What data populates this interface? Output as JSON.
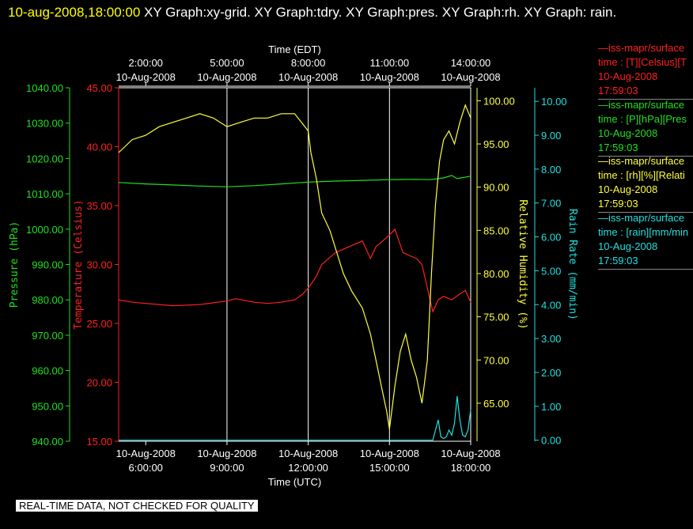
{
  "header": {
    "timestamp": "10-aug-2008,18:00:00",
    "titles": " XY Graph:xy-grid.  XY Graph:tdry.  XY Graph:pres.  XY Graph:rh.  XY Graph: rain."
  },
  "legend": [
    {
      "name": "—iss-mapr/surface",
      "line2": "time : [T][Celsius][T",
      "date": "10-Aug-2008",
      "time": "17:59:03",
      "color": "#ff2020"
    },
    {
      "name": "—iss-mapr/surface",
      "line2": "time : [P][hPa][Pres",
      "date": "10-Aug-2008",
      "time": "17:59:03",
      "color": "#20e020"
    },
    {
      "name": "—iss-mapr/surface",
      "line2": "time : [rh][%][Relati",
      "date": "10-Aug-2008",
      "time": "17:59:03",
      "color": "#ffff40"
    },
    {
      "name": "—iss-mapr/surface",
      "line2": "time : [rain][mm/min",
      "date": "10-Aug-2008",
      "time": "17:59:03",
      "color": "#20e0e0"
    }
  ],
  "disclaimer": "REAL-TIME DATA, NOT CHECKED FOR QUALITY",
  "chart_data": {
    "type": "line",
    "x_unit": "hours UTC",
    "xlim": [
      5.0,
      18.0
    ],
    "top_axis": {
      "label": "Time (EDT)",
      "ticks": [
        {
          "x": 6,
          "time": "2:00:00",
          "date": "10-Aug-2008"
        },
        {
          "x": 9,
          "time": "5:00:00",
          "date": "10-Aug-2008"
        },
        {
          "x": 12,
          "time": "8:00:00",
          "date": "10-Aug-2008"
        },
        {
          "x": 15,
          "time": "11:00:00",
          "date": "10-Aug-2008"
        },
        {
          "x": 18,
          "time": "14:00:00",
          "date": "10-Aug-2008"
        }
      ]
    },
    "bottom_axis": {
      "label": "Time (UTC)",
      "ticks": [
        {
          "x": 6,
          "date": "10-Aug-2008",
          "time": "6:00:00"
        },
        {
          "x": 9,
          "date": "10-Aug-2008",
          "time": "9:00:00"
        },
        {
          "x": 12,
          "date": "10-Aug-2008",
          "time": "12:00:00"
        },
        {
          "x": 15,
          "date": "10-Aug-2008",
          "time": "15:00:00"
        },
        {
          "x": 18,
          "date": "10-Aug-2008",
          "time": "18:00:00"
        }
      ]
    },
    "grid_x": [
      9,
      12,
      15
    ],
    "axes": [
      {
        "id": "pres",
        "label": "Pressure (hPa)",
        "color": "#20e020",
        "lim": [
          940,
          1040
        ],
        "ticks": [
          "940.00",
          "950.00",
          "960.00",
          "970.00",
          "980.00",
          "990.00",
          "1000.00",
          "1010.00",
          "1020.00",
          "1030.00",
          "1040.00"
        ]
      },
      {
        "id": "tdry",
        "label": "Temperature (Celsius)",
        "color": "#ff2020",
        "lim": [
          15,
          45
        ],
        "ticks": [
          "15.00",
          "20.00",
          "25.00",
          "30.00",
          "35.00",
          "40.00",
          "45.00"
        ]
      },
      {
        "id": "rh",
        "label": "Relative Humidity (%)",
        "color": "#ffff40",
        "lim": [
          60.6,
          101.5
        ],
        "ticks": [
          "65.00",
          "70.00",
          "75.00",
          "80.00",
          "85.00",
          "90.00",
          "95.00",
          "100.00"
        ]
      },
      {
        "id": "rain",
        "label": "Rain Rate (mm/min)",
        "color": "#20e0e0",
        "lim": [
          -0.03,
          10.4
        ],
        "ticks": [
          "0.00",
          "1.00",
          "2.00",
          "3.00",
          "4.00",
          "5.00",
          "6.00",
          "7.00",
          "8.00",
          "9.00",
          "10.00"
        ]
      }
    ],
    "series": [
      {
        "axis": "pres",
        "color": "#20e020",
        "x": [
          5,
          6,
          7,
          8,
          9,
          10,
          11,
          12,
          13,
          14,
          15,
          16,
          16.5,
          17,
          17.3,
          17.5,
          18
        ],
        "y": [
          1013.2,
          1012.8,
          1012.5,
          1012.2,
          1012.0,
          1012.3,
          1012.8,
          1013.3,
          1013.6,
          1013.8,
          1014.0,
          1014.1,
          1014.0,
          1014.5,
          1015.2,
          1014.3,
          1015.0
        ]
      },
      {
        "axis": "tdry",
        "color": "#ff2020",
        "x": [
          5,
          5.5,
          6,
          7,
          8,
          9,
          9.3,
          10,
          10.5,
          11,
          11.5,
          11.8,
          12,
          12.3,
          12.5,
          13,
          13.5,
          14,
          14.3,
          14.5,
          15,
          15.2,
          15.5,
          16,
          16.2,
          16.4,
          16.6,
          16.8,
          17.0,
          17.3,
          17.6,
          17.8,
          18
        ],
        "y": [
          27.0,
          26.8,
          26.7,
          26.5,
          26.6,
          26.9,
          27.1,
          26.8,
          26.7,
          26.8,
          27.0,
          27.5,
          28.0,
          29.0,
          30.0,
          31.0,
          31.5,
          32.0,
          30.5,
          31.5,
          32.5,
          33.0,
          31.0,
          30.5,
          30.0,
          28.0,
          26.0,
          27.0,
          27.3,
          27.0,
          27.5,
          27.8,
          26.8
        ]
      },
      {
        "axis": "rh",
        "color": "#ffff40",
        "x": [
          5,
          5.5,
          6,
          6.5,
          7,
          7.5,
          8,
          8.5,
          9,
          9.5,
          10,
          10.5,
          11,
          11.5,
          12,
          12.1,
          12.3,
          12.5,
          12.8,
          13,
          13.3,
          13.6,
          14,
          14.3,
          14.5,
          14.7,
          14.9,
          15,
          15.2,
          15.4,
          15.6,
          15.8,
          16,
          16.2,
          16.4,
          16.55,
          16.7,
          16.85,
          17,
          17.2,
          17.4,
          17.6,
          17.8,
          18
        ],
        "y": [
          94.0,
          95.5,
          96.0,
          97.0,
          97.5,
          98.0,
          98.5,
          98.0,
          97.0,
          97.5,
          98.0,
          98.0,
          98.5,
          98.5,
          96.5,
          94.0,
          91.0,
          87.0,
          85.0,
          83.0,
          80.0,
          78.0,
          76.0,
          73.0,
          70.0,
          67.0,
          64.0,
          62.0,
          67.0,
          71.0,
          73.0,
          70.0,
          68.0,
          65.0,
          70.0,
          80.0,
          88.0,
          93.0,
          95.5,
          96.5,
          95.0,
          97.5,
          99.5,
          98.0
        ]
      },
      {
        "axis": "rain",
        "color": "#20e0e0",
        "x": [
          5,
          16.6,
          16.8,
          16.9,
          17.0,
          17.1,
          17.2,
          17.3,
          17.4,
          17.5,
          17.6,
          17.7,
          17.8,
          17.9,
          18
        ],
        "y": [
          0.0,
          0.0,
          0.6,
          0.1,
          0.05,
          0.1,
          0.3,
          0.15,
          0.5,
          1.3,
          0.6,
          0.15,
          0.1,
          0.3,
          0.9
        ]
      }
    ]
  }
}
